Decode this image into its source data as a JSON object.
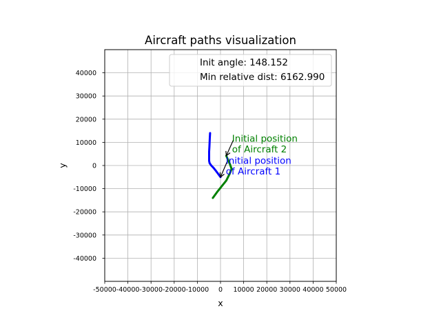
{
  "chart_data": {
    "type": "line",
    "title": "Aircraft paths visualization",
    "xlabel": "x",
    "ylabel": "y",
    "xlim": [
      -50000,
      50000
    ],
    "ylim": [
      -50000,
      50000
    ],
    "x_ticks": [
      -50000,
      -40000,
      -30000,
      -20000,
      -10000,
      0,
      10000,
      20000,
      30000,
      40000,
      50000
    ],
    "y_ticks": [
      -40000,
      -30000,
      -20000,
      -10000,
      0,
      10000,
      20000,
      30000,
      40000
    ],
    "grid": true,
    "legend_placement": "upper right",
    "legend_entries": [
      "Init angle: 148.152",
      "Min relative dist: 6162.990"
    ],
    "series": [
      {
        "color": "#0000ff",
        "x": [
          -4500,
          -4600,
          -4700,
          -4800,
          -4900,
          -4900,
          -4700,
          -4000,
          -3000,
          -2000,
          -1000,
          0
        ],
        "y": [
          14000,
          12000,
          10000,
          8000,
          6000,
          2000,
          1000,
          0,
          -1000,
          -2300,
          -3600,
          -5000
        ]
      },
      {
        "color": "#008000",
        "x": [
          2500,
          3200,
          4100,
          4800,
          4000,
          2500,
          500,
          -1500,
          -3300
        ],
        "y": [
          4200,
          2500,
          500,
          -1500,
          -3500,
          -6500,
          -9000,
          -11500,
          -14000
        ]
      }
    ],
    "annotations": [
      {
        "text": [
          "Initial position",
          "of Aircraft 2"
        ],
        "color": "#008000",
        "text_x": 5000,
        "text_y_lines": [
          11700,
          7200
        ],
        "arrow_to": [
          2500,
          4200
        ]
      },
      {
        "text": [
          "Initial position",
          "of Aircraft 1"
        ],
        "color": "#0000ff",
        "text_x": 2300,
        "text_y_lines": [
          2300,
          -2400
        ],
        "arrow_to": [
          0,
          -5000
        ]
      }
    ]
  }
}
